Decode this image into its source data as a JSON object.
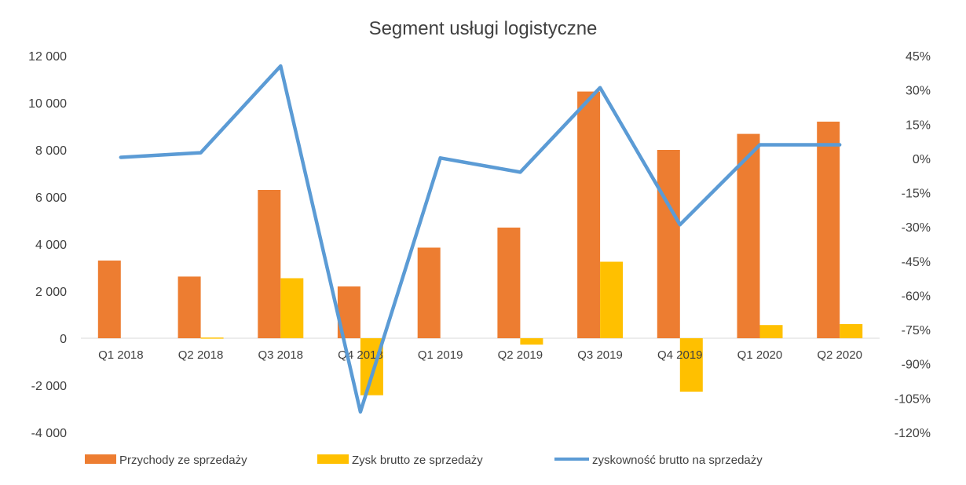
{
  "chart_data": {
    "type": "bar+line",
    "title": "Segment usługi logistyczne",
    "categories": [
      "Q1 2018",
      "Q2 2018",
      "Q3 2018",
      "Q4 2018",
      "Q1 2019",
      "Q2 2019",
      "Q3 2019",
      "Q4 2019",
      "Q1 2020",
      "Q2 2020"
    ],
    "y_left": {
      "min": -4000,
      "max": 12000,
      "step": 2000,
      "tick_labels": [
        "-4 000",
        "-2 000",
        "0",
        "2 000",
        "4 000",
        "6 000",
        "8 000",
        "10 000",
        "12 000"
      ]
    },
    "y_right": {
      "min": -120,
      "max": 45,
      "step": 15,
      "tick_labels": [
        "-120%",
        "-105%",
        "-90%",
        "-75%",
        "-60%",
        "-45%",
        "-30%",
        "-15%",
        "0%",
        "15%",
        "30%",
        "45%"
      ]
    },
    "series": [
      {
        "name": "Przychody ze sprzedaży",
        "type": "bar",
        "axis": "left",
        "color": "#ED7D31",
        "values": [
          3300,
          2620,
          6300,
          2200,
          3850,
          4700,
          10480,
          8000,
          8680,
          9200
        ]
      },
      {
        "name": "Zysk brutto ze sprzedaży",
        "type": "bar",
        "axis": "left",
        "color": "#FFC000",
        "values": [
          0,
          30,
          2550,
          -2420,
          0,
          -270,
          3250,
          -2270,
          560,
          600
        ]
      },
      {
        "name": "zyskowność brutto na sprzedaży",
        "type": "line",
        "axis": "right",
        "color": "#5B9BD5",
        "values": [
          0.5,
          2.5,
          40.5,
          -111,
          0.2,
          -6,
          31,
          -29,
          6,
          6
        ]
      }
    ],
    "legend_position": "bottom",
    "grid": false
  }
}
